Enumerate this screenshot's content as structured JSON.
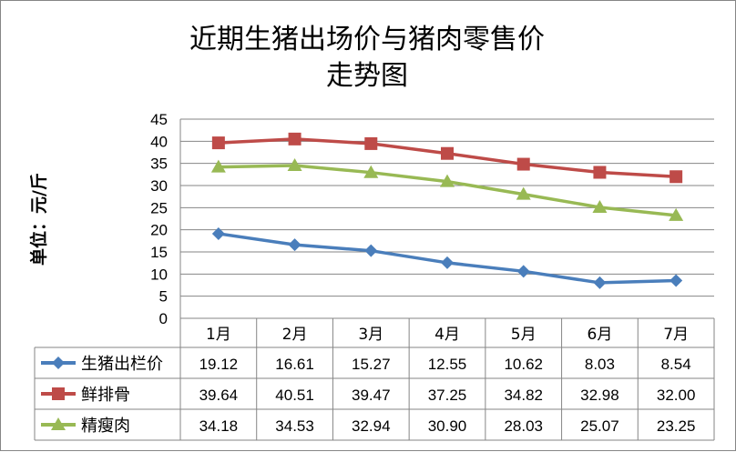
{
  "chart_data": {
    "type": "line",
    "title": [
      "近期生猪出场价与猪肉零售价",
      "走势图"
    ],
    "ylabel": "单位：元/斤",
    "xlabel": "",
    "categories": [
      "1月",
      "2月",
      "3月",
      "4月",
      "5月",
      "6月",
      "7月"
    ],
    "ylim": [
      0,
      45
    ],
    "yticks": [
      0,
      5,
      10,
      15,
      20,
      25,
      30,
      35,
      40,
      45
    ],
    "grid": true,
    "legend": "data-table",
    "series": [
      {
        "name": "生猪出栏价",
        "color": "#4A7EBB",
        "marker": "diamond",
        "values": [
          19.12,
          16.61,
          15.27,
          12.55,
          10.62,
          8.03,
          8.54
        ],
        "labels": [
          "19.12",
          "16.61",
          "15.27",
          "12.55",
          "10.62",
          "8.03",
          "8.54"
        ]
      },
      {
        "name": "鲜排骨",
        "color": "#BE4B48",
        "marker": "square",
        "values": [
          39.64,
          40.51,
          39.47,
          37.25,
          34.82,
          32.98,
          32.0
        ],
        "labels": [
          "39.64",
          "40.51",
          "39.47",
          "37.25",
          "34.82",
          "32.98",
          "32.00"
        ]
      },
      {
        "name": "精瘦肉",
        "color": "#98B954",
        "marker": "triangle",
        "values": [
          34.18,
          34.53,
          32.94,
          30.9,
          28.03,
          25.07,
          23.25
        ],
        "labels": [
          "34.18",
          "34.53",
          "32.94",
          "30.90",
          "28.03",
          "25.07",
          "23.25"
        ]
      }
    ]
  }
}
